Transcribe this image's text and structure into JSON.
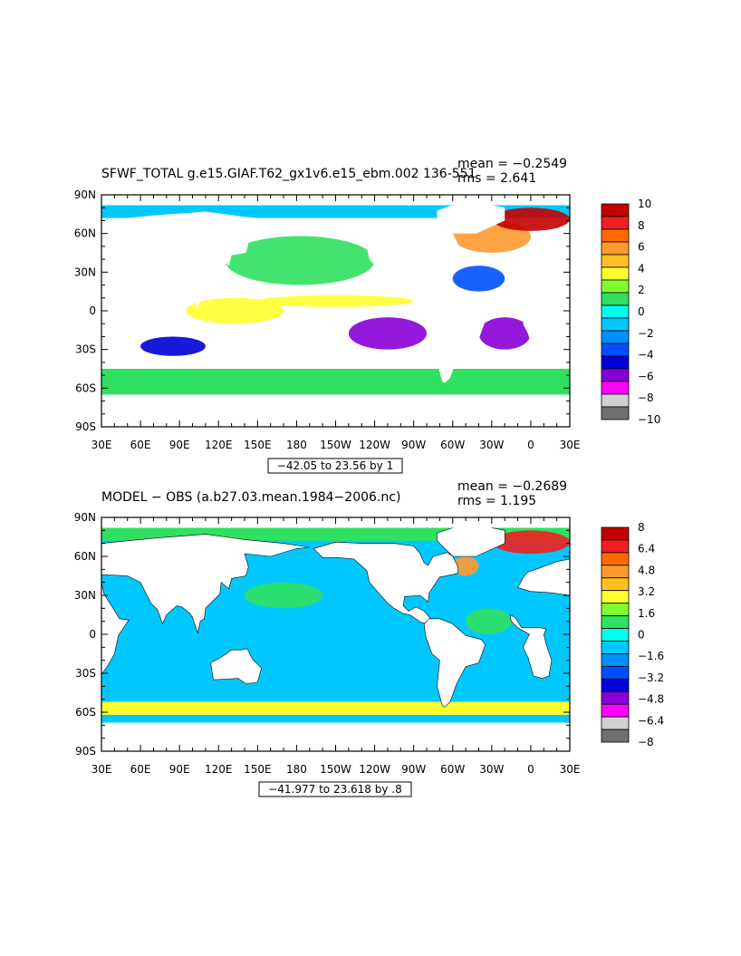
{
  "chart_data": [
    {
      "type": "heatmap",
      "title": "SFWF_TOTAL g.e15.GIAF.T62_gx1v6.e15_ebm.002 136-551",
      "stats": {
        "mean": "mean = −0.2549",
        "rms": "rms = 2.641"
      },
      "range_label": "−42.05 to 23.56 by 1",
      "x_ticks": [
        "30E",
        "60E",
        "90E",
        "120E",
        "150E",
        "180",
        "150W",
        "120W",
        "90W",
        "60W",
        "30W",
        "0",
        "30E"
      ],
      "y_ticks": [
        "90N",
        "60N",
        "30N",
        "0",
        "30S",
        "60S",
        "90S"
      ],
      "colorbar": {
        "labels": [
          "10",
          "8",
          "6",
          "4",
          "2",
          "0",
          "−2",
          "−4",
          "−6",
          "−8",
          "−10"
        ],
        "values": [
          10,
          8,
          6,
          4,
          2,
          0,
          -2,
          -4,
          -6,
          -8,
          -10
        ],
        "colors": [
          "#c40000",
          "#ee2020",
          "#ff6a00",
          "#ff9a30",
          "#ffc020",
          "#ffff30",
          "#80ff30",
          "#30e060",
          "#00ffee",
          "#00c8ff",
          "#0090ff",
          "#0050ff",
          "#0000d8",
          "#8800d8",
          "#ff00ff",
          "#d0d0d0",
          "#707070"
        ]
      },
      "regions": [
        {
          "label": "Arctic strip",
          "lon": [
            30,
            390
          ],
          "lat": [
            72,
            82
          ],
          "value": -1
        },
        {
          "label": "North Pacific",
          "lon": [
            125,
            240
          ],
          "lat": [
            20,
            58
          ],
          "value": 1
        },
        {
          "label": "North Atlantic subpolar",
          "lon": [
            300,
            360
          ],
          "lat": [
            45,
            70
          ],
          "value": 6
        },
        {
          "label": "Greenland-Norwegian sea",
          "lon": [
            330,
            390
          ],
          "lat": [
            62,
            80
          ],
          "value": 9
        },
        {
          "label": "ITCZ Pacific",
          "lon": [
            150,
            270
          ],
          "lat": [
            3,
            12
          ],
          "value": 4
        },
        {
          "label": "Indo-Pacific warm pool",
          "lon": [
            95,
            170
          ],
          "lat": [
            -10,
            10
          ],
          "value": 3
        },
        {
          "label": "Southeast Pacific",
          "lon": [
            220,
            280
          ],
          "lat": [
            -30,
            -5
          ],
          "value": -6
        },
        {
          "label": "South Atlantic",
          "lon": [
            320,
            360
          ],
          "lat": [
            -30,
            -5
          ],
          "value": -6
        },
        {
          "label": "South Indian",
          "lon": [
            60,
            110
          ],
          "lat": [
            -35,
            -20
          ],
          "value": -5
        },
        {
          "label": "North Atlantic subtropics",
          "lon": [
            300,
            340
          ],
          "lat": [
            15,
            35
          ],
          "value": -3
        },
        {
          "label": "Southern Ocean band",
          "lon": [
            30,
            390
          ],
          "lat": [
            -65,
            -45
          ],
          "value": 1
        }
      ]
    },
    {
      "type": "heatmap",
      "title": "MODEL − OBS (a.b27.03.mean.1984−2006.nc)",
      "stats": {
        "mean": "mean = −0.2689",
        "rms": "rms = 1.195"
      },
      "range_label": "−41.977 to 23.618 by .8",
      "x_ticks": [
        "30E",
        "60E",
        "90E",
        "120E",
        "150E",
        "180",
        "150W",
        "120W",
        "90W",
        "60W",
        "30W",
        "0",
        "30E"
      ],
      "y_ticks": [
        "90N",
        "60N",
        "30N",
        "0",
        "30S",
        "60S",
        "90S"
      ],
      "colorbar": {
        "labels": [
          "8",
          "6.4",
          "4.8",
          "3.2",
          "1.6",
          "0",
          "−1.6",
          "−3.2",
          "−4.8",
          "−6.4",
          "−8"
        ],
        "values": [
          8,
          6.4,
          4.8,
          3.2,
          1.6,
          0,
          -1.6,
          -3.2,
          -4.8,
          -6.4,
          -8
        ],
        "colors": [
          "#c40000",
          "#ee2020",
          "#ff6a00",
          "#ff9a30",
          "#ffc020",
          "#ffff30",
          "#80ff30",
          "#30e060",
          "#00ffee",
          "#00c8ff",
          "#0090ff",
          "#0050ff",
          "#0000d8",
          "#8800d8",
          "#ff00ff",
          "#d0d0d0",
          "#707070"
        ]
      },
      "regions": [
        {
          "label": "Ocean background",
          "lon": [
            30,
            390
          ],
          "lat": [
            -68,
            85
          ],
          "value": -0.5
        },
        {
          "label": "Arctic strip",
          "lon": [
            30,
            390
          ],
          "lat": [
            72,
            84
          ],
          "value": 0.8
        },
        {
          "label": "North Pacific positive",
          "lon": [
            140,
            200
          ],
          "lat": [
            20,
            40
          ],
          "value": 0.5
        },
        {
          "label": "Greenland-Norwegian sea",
          "lon": [
            330,
            390
          ],
          "lat": [
            62,
            80
          ],
          "value": 7
        },
        {
          "label": "Labrador sea",
          "lon": [
            300,
            320
          ],
          "lat": [
            45,
            60
          ],
          "value": 5
        },
        {
          "label": "Tropical Atlantic",
          "lon": [
            310,
            345
          ],
          "lat": [
            0,
            20
          ],
          "value": 0.6
        },
        {
          "label": "Southern Ocean band",
          "lon": [
            30,
            390
          ],
          "lat": [
            -62,
            -52
          ],
          "value": 3
        }
      ]
    }
  ]
}
